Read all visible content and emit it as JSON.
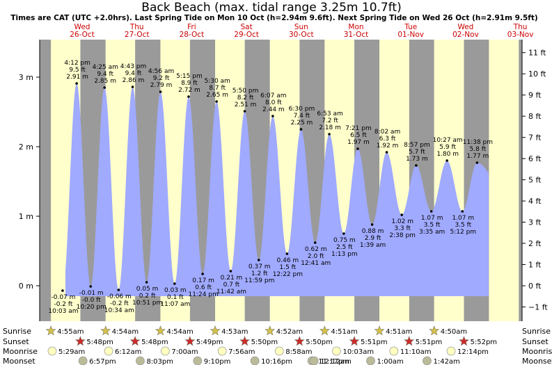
{
  "title": "Back Beach (max. tidal range 3.25m 10.7ft)",
  "subtitle": "Times are CAT (UTC +2.0hrs). Last Spring Tide on Mon 10 Oct (h=2.94m 9.6ft). Next Spring Tide on Wed 26 Oct (h=2.91m 9.5ft)",
  "colors": {
    "tide": "#a0aaff",
    "day_band": "#ffffcc",
    "night_band": "#9a9a9a",
    "day_label": "#cc0000",
    "sun_icon": "#d4c04a",
    "sunset_icon": "#cc2b2b",
    "moonrise_icon": "#ffffc0",
    "moonset_icon": "#bbbb99"
  },
  "days": [
    {
      "dow": "Wed",
      "date": "26-Oct"
    },
    {
      "dow": "Thu",
      "date": "27-Oct"
    },
    {
      "dow": "Fri",
      "date": "28-Oct"
    },
    {
      "dow": "Sat",
      "date": "29-Oct"
    },
    {
      "dow": "Sun",
      "date": "30-Oct"
    },
    {
      "dow": "Mon",
      "date": "31-Oct"
    },
    {
      "dow": "Tue",
      "date": "01-Nov"
    },
    {
      "dow": "Wed",
      "date": "02-Nov"
    },
    {
      "dow": "Thu",
      "date": "03-Nov"
    }
  ],
  "chart_data": {
    "type": "area",
    "title": "Back Beach (max. tidal range 3.25m 10.7ft)",
    "y_left_ticks": [
      "3 m",
      "2 m",
      "1 m",
      "0 m"
    ],
    "y_right_ticks": [
      "11 ft",
      "10 ft",
      "9 ft",
      "8 ft",
      "7 ft",
      "6 ft",
      "5 ft",
      "4 ft",
      "3 ft",
      "2 ft",
      "1 ft",
      "0 ft",
      "−1 ft"
    ],
    "y_range_m": [
      -0.45,
      3.4
    ],
    "x_range_days": [
      "26-Oct",
      "03-Nov"
    ],
    "tides": [
      {
        "type": "high",
        "day": 0,
        "time": "4:12 pm",
        "m": 2.91,
        "ft": "9.5 ft",
        "h": "2.91 m"
      },
      {
        "type": "low",
        "day": 0,
        "time": "10:03 am",
        "m": -0.07,
        "ft": "-0.2 ft",
        "h": "-0.07 m"
      },
      {
        "type": "low",
        "day": 0,
        "time": "10:20 pm",
        "m": -0.01,
        "ft": "-0.0 ft",
        "h": "-0.01 m"
      },
      {
        "type": "high",
        "day": 1,
        "time": "4:25 am",
        "m": 2.85,
        "ft": "9.4 ft",
        "h": "2.85 m"
      },
      {
        "type": "high",
        "day": 1,
        "time": "4:43 pm",
        "m": 2.86,
        "ft": "9.4 ft",
        "h": "2.86 m"
      },
      {
        "type": "low",
        "day": 1,
        "time": "10:34 am",
        "m": -0.06,
        "ft": "-0.2 ft",
        "h": "-0.06 m"
      },
      {
        "type": "low",
        "day": 1,
        "time": "10:51 pm",
        "m": 0.05,
        "ft": "0.2 ft",
        "h": "0.05 m"
      },
      {
        "type": "high",
        "day": 2,
        "time": "4:56 am",
        "m": 2.79,
        "ft": "9.2 ft",
        "h": "2.79 m"
      },
      {
        "type": "high",
        "day": 2,
        "time": "5:15 pm",
        "m": 2.72,
        "ft": "8.9 ft",
        "h": "2.72 m"
      },
      {
        "type": "low",
        "day": 2,
        "time": "11:07 am",
        "m": 0.03,
        "ft": "0.1 ft",
        "h": "0.03 m"
      },
      {
        "type": "low",
        "day": 2,
        "time": "11:24 pm",
        "m": 0.17,
        "ft": "0.6 ft",
        "h": "0.17 m"
      },
      {
        "type": "high",
        "day": 3,
        "time": "5:30 am",
        "m": 2.65,
        "ft": "8.7 ft",
        "h": "2.65 m"
      },
      {
        "type": "high",
        "day": 3,
        "time": "5:50 pm",
        "m": 2.51,
        "ft": "8.2 ft",
        "h": "2.51 m"
      },
      {
        "type": "low",
        "day": 3,
        "time": "11:42 am",
        "m": 0.21,
        "ft": "0.7 ft",
        "h": "0.21 m"
      },
      {
        "type": "low",
        "day": 3,
        "time": "11:59 pm",
        "m": 0.37,
        "ft": "1.2 ft",
        "h": "0.37 m"
      },
      {
        "type": "high",
        "day": 4,
        "time": "6:07 am",
        "m": 2.44,
        "ft": "8.0 ft",
        "h": "2.44 m"
      },
      {
        "type": "high",
        "day": 4,
        "time": "6:30 pm",
        "m": 2.25,
        "ft": "7.4 ft",
        "h": "2.25 m"
      },
      {
        "type": "low",
        "day": 4,
        "time": "12:22 pm",
        "m": 0.46,
        "ft": "1.5 ft",
        "h": "0.46 m"
      },
      {
        "type": "low",
        "day": 5,
        "time": "12:41 am",
        "m": 0.62,
        "ft": "2.0 ft",
        "h": "0.62 m"
      },
      {
        "type": "high",
        "day": 5,
        "time": "6:53 am",
        "m": 2.18,
        "ft": "7.2 ft",
        "h": "2.18 m"
      },
      {
        "type": "high",
        "day": 5,
        "time": "7:21 pm",
        "m": 1.97,
        "ft": "6.5 ft",
        "h": "1.97 m"
      },
      {
        "type": "low",
        "day": 5,
        "time": "1:13 pm",
        "m": 0.75,
        "ft": "2.5 ft",
        "h": "0.75 m"
      },
      {
        "type": "low",
        "day": 6,
        "time": "1:39 am",
        "m": 0.88,
        "ft": "2.9 ft",
        "h": "0.88 m"
      },
      {
        "type": "high",
        "day": 6,
        "time": "8:02 am",
        "m": 1.92,
        "ft": "6.3 ft",
        "h": "1.92 m"
      },
      {
        "type": "high",
        "day": 6,
        "time": "8:57 pm",
        "m": 1.73,
        "ft": "5.7 ft",
        "h": "1.73 m"
      },
      {
        "type": "low",
        "day": 6,
        "time": "2:38 pm",
        "m": 1.02,
        "ft": "3.3 ft",
        "h": "1.02 m"
      },
      {
        "type": "low",
        "day": 7,
        "time": "3:35 am",
        "m": 1.07,
        "ft": "3.5 ft",
        "h": "1.07 m"
      },
      {
        "type": "high",
        "day": 7,
        "time": "10:27 am",
        "m": 1.8,
        "ft": "5.9 ft",
        "h": "1.80 m"
      },
      {
        "type": "high",
        "day": 7,
        "time": "11:38 pm",
        "m": 1.77,
        "ft": "5.8 ft",
        "h": "1.77 m"
      },
      {
        "type": "low",
        "day": 7,
        "time": "5:12 pm",
        "m": 1.07,
        "ft": "3.5 ft",
        "h": "1.07 m"
      }
    ]
  },
  "rows": {
    "labels": [
      "Sunrise",
      "Sunset",
      "Moonrise",
      "Moonset"
    ],
    "sunrise": [
      {
        "day": 0,
        "time": "4:55am"
      },
      {
        "day": 1,
        "time": "4:54am"
      },
      {
        "day": 2,
        "time": "4:54am"
      },
      {
        "day": 3,
        "time": "4:53am"
      },
      {
        "day": 4,
        "time": "4:52am"
      },
      {
        "day": 5,
        "time": "4:51am"
      },
      {
        "day": 6,
        "time": "4:51am"
      },
      {
        "day": 7,
        "time": "4:50am"
      }
    ],
    "sunset": [
      {
        "day": 0,
        "time": "5:48pm"
      },
      {
        "day": 1,
        "time": "5:48pm"
      },
      {
        "day": 2,
        "time": "5:49pm"
      },
      {
        "day": 3,
        "time": "5:50pm"
      },
      {
        "day": 4,
        "time": "5:50pm"
      },
      {
        "day": 5,
        "time": "5:51pm"
      },
      {
        "day": 6,
        "time": "5:51pm"
      },
      {
        "day": 7,
        "time": "5:52pm"
      }
    ],
    "moonrise": [
      {
        "day": 0,
        "time": "5:29am"
      },
      {
        "day": 1,
        "time": "6:12am"
      },
      {
        "day": 2,
        "time": "7:00am"
      },
      {
        "day": 3,
        "time": "7:56am"
      },
      {
        "day": 4,
        "time": "8:58am"
      },
      {
        "day": 5,
        "time": "10:03am"
      },
      {
        "day": 6,
        "time": "11:10am"
      },
      {
        "day": 7,
        "time": "12:14pm"
      }
    ],
    "moonset": [
      {
        "day": 0,
        "time": "6:57pm"
      },
      {
        "day": 1,
        "time": "8:03pm"
      },
      {
        "day": 2,
        "time": "9:10pm"
      },
      {
        "day": 3,
        "time": "10:16pm"
      },
      {
        "day": 4,
        "time": "11:17pm"
      },
      {
        "day": 5,
        "time": "12:12am"
      },
      {
        "day": 6,
        "time": "1:00am"
      },
      {
        "day": 7,
        "time": "1:42am"
      }
    ]
  }
}
